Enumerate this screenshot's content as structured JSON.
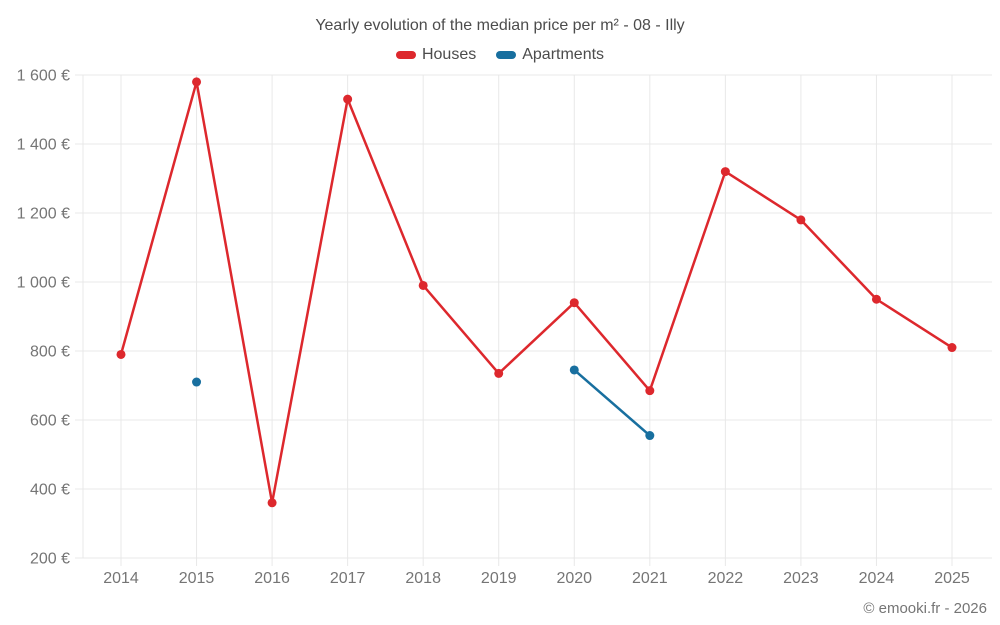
{
  "title": "Yearly evolution of the median price per m² - 08 - Illy",
  "legend": [
    {
      "label": "Houses",
      "color": "#dd282d"
    },
    {
      "label": "Apartments",
      "color": "#186f9f"
    }
  ],
  "footer": "© emooki.fr - 2026",
  "chart_data": {
    "type": "line",
    "x": [
      2014,
      2015,
      2016,
      2017,
      2018,
      2019,
      2020,
      2021,
      2022,
      2023,
      2024,
      2025
    ],
    "series": [
      {
        "name": "Houses",
        "color": "#dd282d",
        "values": [
          790,
          1580,
          360,
          1530,
          990,
          735,
          940,
          685,
          1320,
          1180,
          950,
          810
        ]
      },
      {
        "name": "Apartments",
        "color": "#186f9f",
        "values": [
          null,
          710,
          null,
          null,
          null,
          null,
          745,
          555,
          null,
          null,
          null,
          null
        ]
      }
    ],
    "ylabel_suffix": "€",
    "ylim": [
      200,
      1600
    ],
    "ytick_step": 200,
    "grid": true,
    "legend_position": "top",
    "marker": "circle"
  }
}
